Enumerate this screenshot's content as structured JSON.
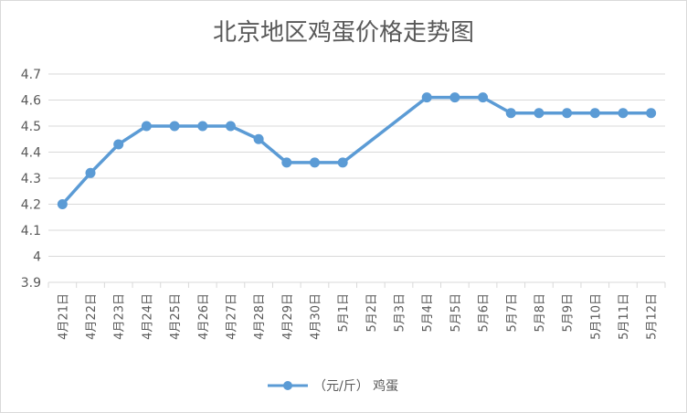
{
  "chart_data": {
    "type": "line",
    "title": "北京地区鸡蛋价格走势图",
    "xlabel": "",
    "ylabel": "",
    "ylim": [
      3.9,
      4.7
    ],
    "yticks": [
      "3.9",
      "4",
      "4.1",
      "4.2",
      "4.3",
      "4.4",
      "4.5",
      "4.6",
      "4.7"
    ],
    "grid": true,
    "legend_position": "bottom",
    "categories": [
      "4月21日",
      "4月22日",
      "4月23日",
      "4月24日",
      "4月25日",
      "4月26日",
      "4月27日",
      "4月28日",
      "4月29日",
      "4月30日",
      "5月1日",
      "5月2日",
      "5月3日",
      "5月4日",
      "5月5日",
      "5月6日",
      "5月7日",
      "5月8日",
      "5月9日",
      "5月10日",
      "5月11日",
      "5月12日"
    ],
    "series": [
      {
        "name": "（元/斤） 鸡蛋",
        "color": "#5b9bd5",
        "values": [
          4.2,
          4.32,
          4.43,
          4.5,
          4.5,
          4.5,
          4.5,
          4.45,
          4.36,
          4.36,
          4.36,
          null,
          null,
          4.61,
          4.61,
          4.61,
          4.55,
          4.55,
          4.55,
          4.55,
          4.55,
          4.55
        ]
      }
    ]
  }
}
